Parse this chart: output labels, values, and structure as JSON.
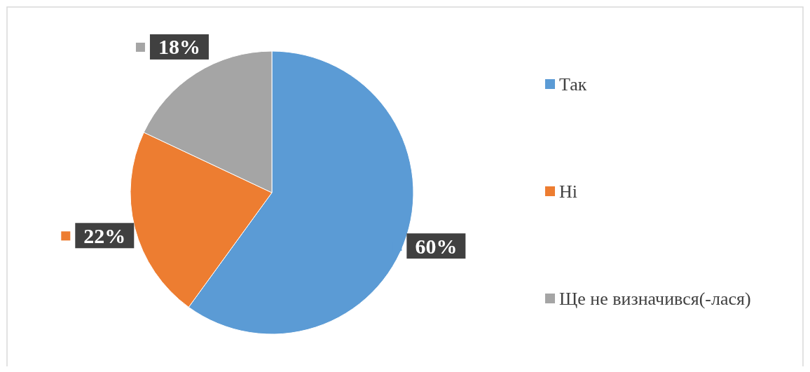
{
  "chart_data": {
    "type": "pie",
    "categories": [
      "Так",
      "Ні",
      "Ще не визначився(-лася)"
    ],
    "values": [
      60,
      22,
      18
    ],
    "colors": [
      "#5b9bd5",
      "#ed7d31",
      "#a5a5a5"
    ],
    "value_labels": [
      "60%",
      "22%",
      "18%"
    ],
    "legend": "right"
  }
}
